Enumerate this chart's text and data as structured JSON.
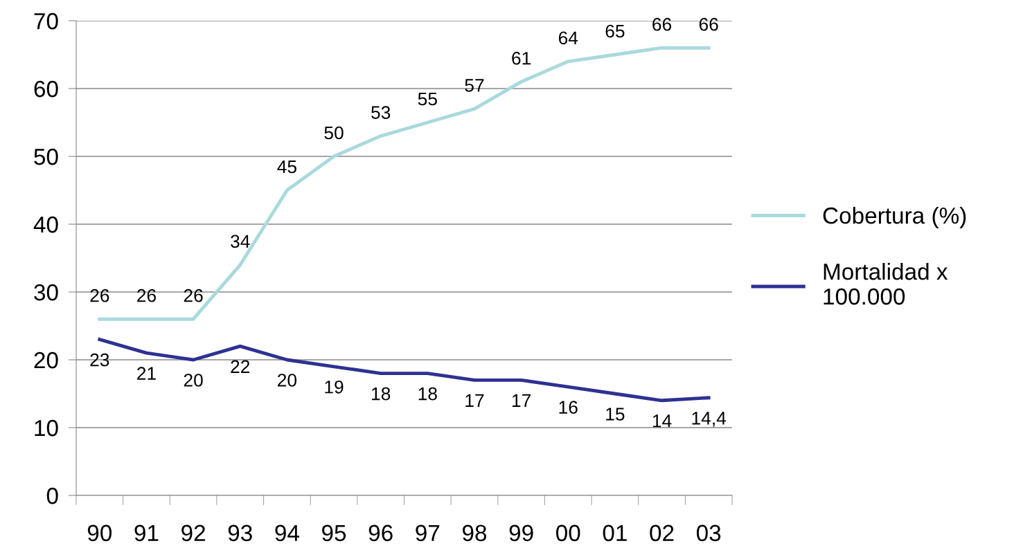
{
  "chart_data": {
    "type": "line",
    "categories": [
      "90",
      "91",
      "92",
      "93",
      "94",
      "95",
      "96",
      "97",
      "98",
      "99",
      "00",
      "01",
      "02",
      "03"
    ],
    "series": [
      {
        "name": "Cobertura (%)",
        "color": "#a9d9dd",
        "values": [
          26,
          26,
          26,
          34,
          45,
          50,
          53,
          55,
          57,
          61,
          64,
          65,
          66,
          66
        ],
        "value_labels": [
          "26",
          "26",
          "26",
          "34",
          "45",
          "50",
          "53",
          "55",
          "57",
          "61",
          "64",
          "65",
          "66",
          "66"
        ]
      },
      {
        "name": "Mortalidad x 100.000",
        "color": "#2e3192",
        "values": [
          23,
          21,
          20,
          22,
          20,
          19,
          18,
          18,
          17,
          17,
          16,
          15,
          14,
          14.4
        ],
        "value_labels": [
          "23",
          "21",
          "20",
          "22",
          "20",
          "19",
          "18",
          "18",
          "17",
          "17",
          "16",
          "15",
          "14",
          "14,4"
        ]
      }
    ],
    "ylim": [
      0,
      70
    ],
    "yticks": [
      0,
      10,
      20,
      30,
      40,
      50,
      60,
      70
    ],
    "grid": "y",
    "legend": "right",
    "marker": "none",
    "line_style": "solid"
  }
}
